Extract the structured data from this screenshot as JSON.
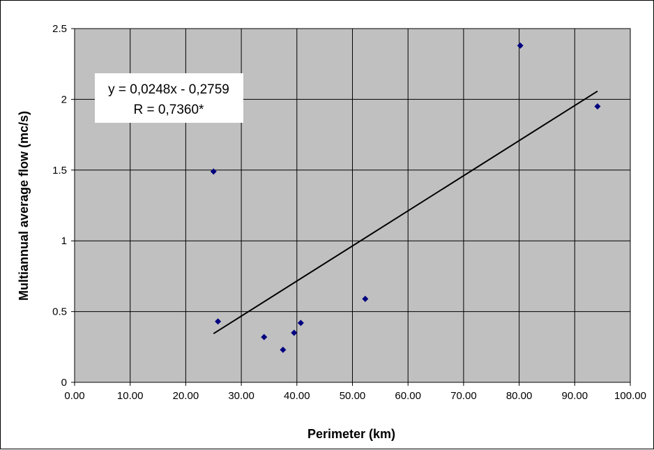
{
  "chart_data": {
    "type": "scatter",
    "xlabel": "Perimeter (km)",
    "ylabel": "Multiannual average flow (mc/s)",
    "xlim": [
      0,
      100
    ],
    "ylim": [
      0,
      2.5
    ],
    "x_ticks": [
      "0.00",
      "10.00",
      "20.00",
      "30.00",
      "40.00",
      "50.00",
      "60.00",
      "70.00",
      "80.00",
      "90.00",
      "100.00"
    ],
    "y_ticks": [
      "0",
      "0.5",
      "1",
      "1.5",
      "2",
      "2.5"
    ],
    "grid": true,
    "background_color": "#c0c0c0",
    "marker_color": "#000080",
    "points": [
      {
        "x": 25.0,
        "y": 1.49
      },
      {
        "x": 25.8,
        "y": 0.43
      },
      {
        "x": 34.1,
        "y": 0.32
      },
      {
        "x": 37.5,
        "y": 0.23
      },
      {
        "x": 39.5,
        "y": 0.35
      },
      {
        "x": 40.7,
        "y": 0.42
      },
      {
        "x": 52.3,
        "y": 0.59
      },
      {
        "x": 80.2,
        "y": 2.38
      },
      {
        "x": 94.1,
        "y": 1.95
      }
    ],
    "trendline": {
      "x_start": 25.0,
      "x_end": 94.1,
      "slope": 0.0248,
      "intercept": -0.2759,
      "equation_text": "y = 0,0248x - 0,2759",
      "r_text": "R = 0,7360*"
    }
  }
}
